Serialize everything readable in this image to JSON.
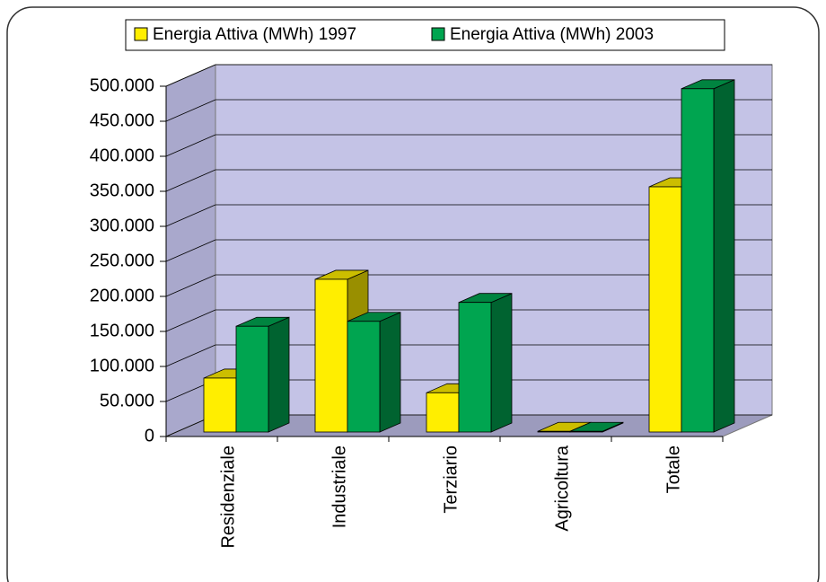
{
  "chart_data": {
    "type": "bar3d",
    "categories": [
      "Residenziale",
      "Industriale",
      "Terziario",
      "Agricoltura",
      "Totale"
    ],
    "series": [
      {
        "name": "Energia Attiva (MWh) 1997",
        "color": "#ffee00",
        "values": [
          77000,
          218000,
          56000,
          1000,
          350000
        ]
      },
      {
        "name": "Energia Attiva (MWh) 2003",
        "color": "#00a550",
        "values": [
          151000,
          158000,
          185000,
          1000,
          490000
        ]
      }
    ],
    "ylim": [
      0,
      500000
    ],
    "yticks": [
      0,
      {
        "value": 50000,
        "label": "50.000"
      },
      {
        "value": 100000,
        "label": "100.000"
      },
      {
        "value": 150000,
        "label": "150.000"
      },
      {
        "value": 200000,
        "label": "200.000"
      },
      {
        "value": 250000,
        "label": "250.000"
      },
      {
        "value": 300000,
        "label": "300.000"
      },
      {
        "value": 350000,
        "label": "350.000"
      },
      {
        "value": 400000,
        "label": "400.000"
      },
      {
        "value": 450000,
        "label": "450.000"
      },
      {
        "value": 500000,
        "label": "500.000"
      }
    ],
    "grid": true,
    "legend": "top"
  }
}
